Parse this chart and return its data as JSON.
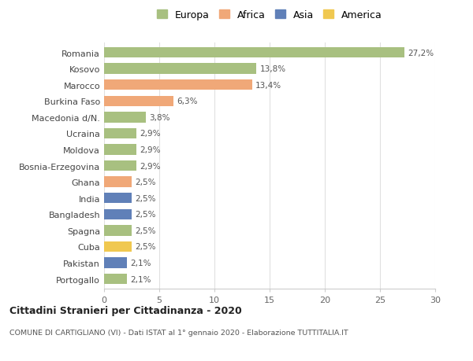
{
  "categories": [
    "Romania",
    "Kosovo",
    "Marocco",
    "Burkina Faso",
    "Macedonia d/N.",
    "Ucraina",
    "Moldova",
    "Bosnia-Erzegovina",
    "Ghana",
    "India",
    "Bangladesh",
    "Spagna",
    "Cuba",
    "Pakistan",
    "Portogallo"
  ],
  "values": [
    27.2,
    13.8,
    13.4,
    6.3,
    3.8,
    2.9,
    2.9,
    2.9,
    2.5,
    2.5,
    2.5,
    2.5,
    2.5,
    2.1,
    2.1
  ],
  "labels": [
    "27,2%",
    "13,8%",
    "13,4%",
    "6,3%",
    "3,8%",
    "2,9%",
    "2,9%",
    "2,9%",
    "2,5%",
    "2,5%",
    "2,5%",
    "2,5%",
    "2,5%",
    "2,1%",
    "2,1%"
  ],
  "colors": [
    "#a8c080",
    "#a8c080",
    "#f0a878",
    "#f0a878",
    "#a8c080",
    "#a8c080",
    "#a8c080",
    "#a8c080",
    "#f0a878",
    "#6080b8",
    "#6080b8",
    "#a8c080",
    "#f0c850",
    "#6080b8",
    "#a8c080"
  ],
  "legend_labels": [
    "Europa",
    "Africa",
    "Asia",
    "America"
  ],
  "legend_colors": [
    "#a8c080",
    "#f0a878",
    "#6080b8",
    "#f0c850"
  ],
  "title": "Cittadini Stranieri per Cittadinanza - 2020",
  "subtitle": "COMUNE DI CARTIGLIANO (VI) - Dati ISTAT al 1° gennaio 2020 - Elaborazione TUTTITALIA.IT",
  "xlim": [
    0,
    30
  ],
  "xticks": [
    0,
    5,
    10,
    15,
    20,
    25,
    30
  ],
  "background_color": "#ffffff",
  "grid_color": "#e0e0e0"
}
